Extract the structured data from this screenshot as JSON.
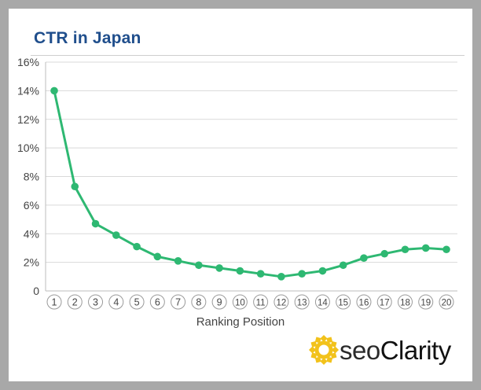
{
  "chart_data": {
    "type": "line",
    "title": "CTR in Japan",
    "xlabel": "Ranking Position",
    "ylabel": "",
    "categories": [
      "1",
      "2",
      "3",
      "4",
      "5",
      "6",
      "7",
      "8",
      "9",
      "10",
      "11",
      "12",
      "13",
      "14",
      "15",
      "16",
      "17",
      "18",
      "19",
      "20"
    ],
    "values": [
      14.0,
      7.3,
      4.7,
      3.9,
      3.1,
      2.4,
      2.1,
      1.8,
      1.6,
      1.4,
      1.2,
      1.0,
      1.2,
      1.4,
      1.8,
      2.3,
      2.6,
      2.9,
      3.0,
      2.9
    ],
    "yticks": [
      "0",
      "2%",
      "4%",
      "6%",
      "8%",
      "10%",
      "12%",
      "14%",
      "16%"
    ],
    "ylim": [
      0,
      16
    ],
    "grid": true,
    "series_color": "#2eb872"
  },
  "branding": {
    "logo_prefix": "seo",
    "logo_suffix": "Clarity",
    "logo_icon": "sun-gear-icon",
    "logo_color": "#f2c21b"
  }
}
